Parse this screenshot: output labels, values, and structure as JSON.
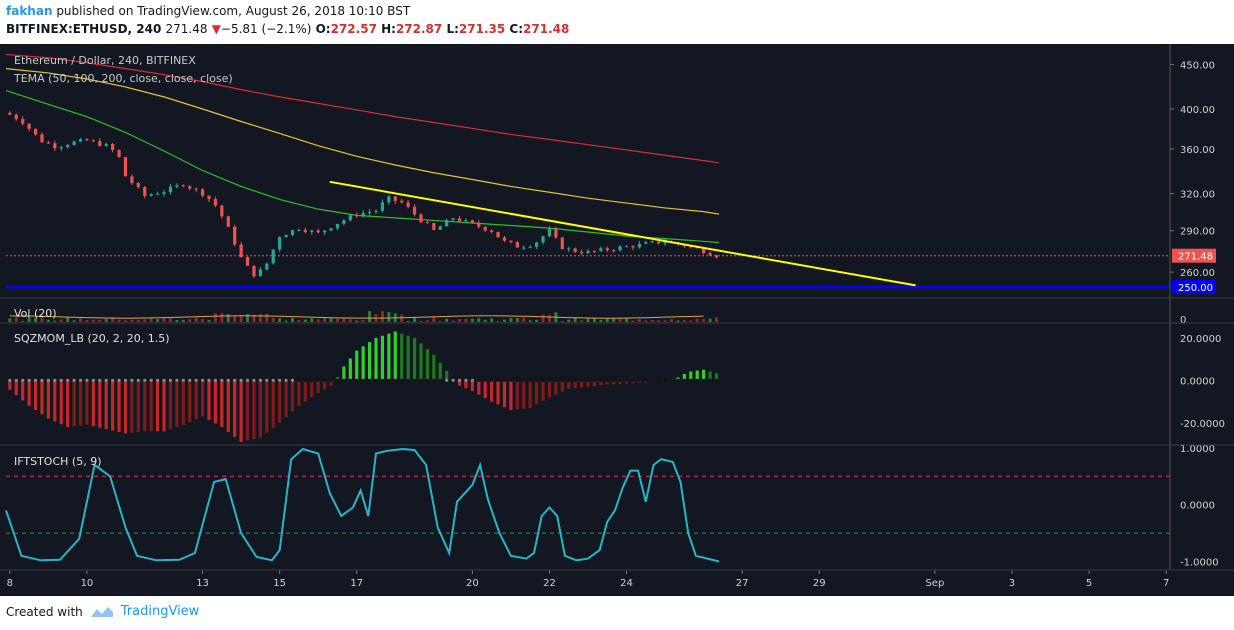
{
  "header": {
    "author": "fakhan",
    "published_text": "published on TradingView.com, August 26, 2018 10:10 BST",
    "symbol_line": "BITFINEX:ETHUSD, 240",
    "last": "271.48",
    "change": "−5.81 (−2.1%)",
    "o_label": "O:",
    "o": "272.57",
    "h_label": "H:",
    "h": "272.87",
    "l_label": "L:",
    "l": "271.35",
    "c_label": "C:",
    "c": "271.48"
  },
  "footer": {
    "created_with": "Created with",
    "brand": "TradingView"
  },
  "colors": {
    "background": "#131722",
    "up": "#26a69a",
    "down": "#ef5350",
    "tema50": "#26c226",
    "tema100": "#e6c229",
    "tema200": "#d32f2f",
    "trendline": "#ffff00",
    "support": "#0000ff",
    "momentum_pos": "#22aa22",
    "momentum_neg": "#b71c1c",
    "stoch": "#26b5c9"
  },
  "chart_data": [
    {
      "type": "candlestick",
      "title": "Ethereum / Dollar, 240, BITFINEX",
      "overlay_label": "TEMA (50, 100, 200, close, close, close)",
      "y_ticks": [
        450,
        400,
        360,
        320,
        290,
        260
      ],
      "y_tick_labels": [
        "450.00",
        "400.00",
        "360.00",
        "320.00",
        "290.00",
        "260.00"
      ],
      "y_log": true,
      "ylim": [
        246,
        465
      ],
      "last_price_label": "271.48",
      "last_price": 271.48,
      "support_label": "250.00",
      "support_level": 250,
      "x_tick_labels": [
        "8",
        "10",
        "13",
        "15",
        "17",
        "20",
        "22",
        "24",
        "27",
        "29",
        "Sep",
        "3",
        "5",
        "7"
      ],
      "x_tick_days": [
        8,
        10,
        13,
        15,
        17,
        20,
        22,
        24,
        27,
        29,
        32,
        34,
        36,
        38
      ],
      "xlim_days": [
        7.9,
        38.1
      ],
      "last_bar_day": 26.4,
      "trendline": {
        "from": {
          "day": 16.3,
          "price": 330
        },
        "to": {
          "day": 31.5,
          "price": 251
        }
      },
      "tema": {
        "days": [
          7.9,
          9,
          10,
          11,
          12,
          13,
          14,
          15,
          16,
          17,
          18,
          19,
          20,
          21,
          22,
          23,
          24,
          25,
          26,
          26.4
        ],
        "tema50": [
          420,
          405,
          392,
          376,
          358,
          340,
          326,
          315,
          307,
          302,
          300,
          298,
          296,
          294,
          292,
          289,
          286,
          284,
          282,
          281
        ],
        "tema100": [
          445,
          440,
          433,
          424,
          413,
          400,
          387,
          375,
          363,
          353,
          345,
          338,
          332,
          326,
          321,
          316,
          312,
          308,
          305,
          303
        ],
        "tema200": [
          462,
          458,
          452,
          445,
          438,
          430,
          421,
          413,
          406,
          399,
          392,
          386,
          380,
          374,
          369,
          364,
          359,
          354,
          349,
          347
        ]
      },
      "close_path": {
        "days": [
          7.9,
          8.3,
          8.8,
          9.2,
          9.6,
          10,
          10.5,
          10.8,
          11,
          11.5,
          12,
          12.5,
          13,
          13.3,
          13.6,
          14,
          14.3,
          14.6,
          15,
          15.5,
          16,
          16.5,
          17,
          17.5,
          17.8,
          18.2,
          18.6,
          19,
          19.5,
          20,
          20.5,
          20.8,
          21.2,
          21.6,
          22,
          22.3,
          22.6,
          23,
          23.5,
          24,
          24.5,
          25,
          25.5,
          26,
          26.4
        ],
        "close": [
          396,
          388,
          368,
          362,
          366,
          368,
          363,
          355,
          335,
          318,
          322,
          328,
          320,
          312,
          296,
          270,
          258,
          262,
          286,
          292,
          288,
          296,
          303,
          306,
          316,
          312,
          300,
          290,
          300,
          295,
          290,
          282,
          278,
          280,
          290,
          278,
          275,
          274,
          276,
          278,
          280,
          282,
          279,
          275,
          271
        ]
      }
    },
    {
      "type": "bar",
      "title": "Vol (20)",
      "y_tick_labels": [
        "0"
      ]
    },
    {
      "type": "bar",
      "title": "SQZMOM_LB (20, 2, 20, 1.5)",
      "y_ticks": [
        20,
        0,
        -20
      ],
      "y_tick_labels": [
        "20.0000",
        "0.0000",
        "-20.0000"
      ],
      "ylim": [
        -30,
        27
      ],
      "points": [
        [
          7.9,
          -3
        ],
        [
          8.5,
          -12
        ],
        [
          9,
          -18
        ],
        [
          9.5,
          -22
        ],
        [
          10,
          -21
        ],
        [
          10.5,
          -23
        ],
        [
          11,
          -25
        ],
        [
          11.5,
          -24
        ],
        [
          12,
          -24
        ],
        [
          12.5,
          -21
        ],
        [
          13,
          -17
        ],
        [
          13.5,
          -22
        ],
        [
          14,
          -29
        ],
        [
          14.5,
          -27
        ],
        [
          15,
          -20
        ],
        [
          15.5,
          -12
        ],
        [
          16,
          -6
        ],
        [
          16.4,
          -2
        ],
        [
          16.6,
          5
        ],
        [
          17,
          14
        ],
        [
          17.5,
          20
        ],
        [
          18,
          23
        ],
        [
          18.5,
          20
        ],
        [
          19,
          12
        ],
        [
          19.4,
          3
        ],
        [
          19.6,
          -2
        ],
        [
          20,
          -5
        ],
        [
          20.5,
          -10
        ],
        [
          21,
          -14
        ],
        [
          21.5,
          -13
        ],
        [
          22,
          -8
        ],
        [
          22.5,
          -4
        ],
        [
          23,
          -3
        ],
        [
          23.5,
          -2
        ],
        [
          24,
          -1.5
        ],
        [
          24.5,
          -1
        ],
        [
          25,
          0
        ],
        [
          25.3,
          1
        ],
        [
          25.6,
          4
        ],
        [
          26,
          5
        ],
        [
          26.4,
          3
        ]
      ]
    },
    {
      "type": "line",
      "title": "IFTSTOCH (5, 9)",
      "y_ticks": [
        1,
        0,
        -1
      ],
      "y_tick_labels": [
        "1.0000",
        "0.0000",
        "-1.0000"
      ],
      "ylim": [
        -1.15,
        1.05
      ],
      "levels": [
        0.5,
        -0.5
      ],
      "points": [
        [
          7.9,
          -0.1
        ],
        [
          8.3,
          -0.9
        ],
        [
          8.8,
          -0.98
        ],
        [
          9.3,
          -0.97
        ],
        [
          9.8,
          -0.6
        ],
        [
          10.2,
          0.7
        ],
        [
          10.6,
          0.5
        ],
        [
          11,
          -0.4
        ],
        [
          11.3,
          -0.9
        ],
        [
          11.8,
          -0.98
        ],
        [
          12.4,
          -0.97
        ],
        [
          12.8,
          -0.85
        ],
        [
          13.3,
          0.4
        ],
        [
          13.6,
          0.45
        ],
        [
          14,
          -0.5
        ],
        [
          14.4,
          -0.92
        ],
        [
          14.8,
          -0.98
        ],
        [
          15,
          -0.8
        ],
        [
          15.3,
          0.8
        ],
        [
          15.6,
          0.98
        ],
        [
          16,
          0.9
        ],
        [
          16.3,
          0.2
        ],
        [
          16.6,
          -0.2
        ],
        [
          16.9,
          -0.05
        ],
        [
          17.1,
          0.25
        ],
        [
          17.3,
          -0.2
        ],
        [
          17.5,
          0.9
        ],
        [
          17.8,
          0.95
        ],
        [
          18.2,
          0.98
        ],
        [
          18.5,
          0.96
        ],
        [
          18.8,
          0.7
        ],
        [
          19.1,
          -0.4
        ],
        [
          19.4,
          -0.85
        ],
        [
          19.6,
          0.05
        ],
        [
          19.8,
          0.2
        ],
        [
          20,
          0.35
        ],
        [
          20.2,
          0.7
        ],
        [
          20.4,
          0.1
        ],
        [
          20.7,
          -0.5
        ],
        [
          21,
          -0.9
        ],
        [
          21.4,
          -0.95
        ],
        [
          21.6,
          -0.85
        ],
        [
          21.8,
          -0.2
        ],
        [
          22,
          -0.05
        ],
        [
          22.2,
          -0.2
        ],
        [
          22.4,
          -0.9
        ],
        [
          22.7,
          -0.98
        ],
        [
          23,
          -0.95
        ],
        [
          23.3,
          -0.8
        ],
        [
          23.5,
          -0.3
        ],
        [
          23.7,
          -0.1
        ],
        [
          23.9,
          0.3
        ],
        [
          24.1,
          0.6
        ],
        [
          24.3,
          0.6
        ],
        [
          24.5,
          0.05
        ],
        [
          24.7,
          0.7
        ],
        [
          24.9,
          0.8
        ],
        [
          25.2,
          0.75
        ],
        [
          25.4,
          0.4
        ],
        [
          25.6,
          -0.5
        ],
        [
          25.8,
          -0.9
        ],
        [
          26.1,
          -0.95
        ],
        [
          26.4,
          -1.0
        ]
      ]
    }
  ]
}
